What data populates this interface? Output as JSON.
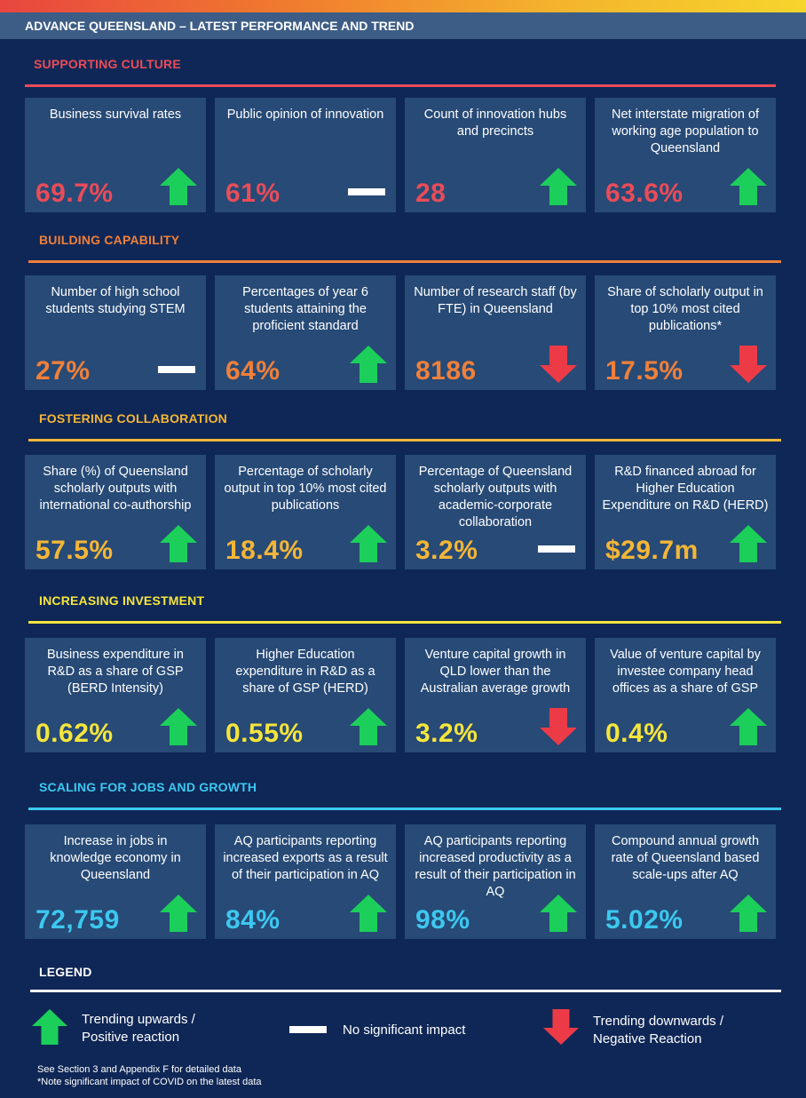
{
  "title": "ADVANCE QUEENSLAND – LATEST PERFORMANCE AND TREND",
  "colors": {
    "up": "#1ccf5a",
    "down": "#ec3b46",
    "none": "#ffffff"
  },
  "sections": [
    {
      "title": "SUPPORTING CULTURE",
      "color": "#ea4c58",
      "cards": [
        {
          "label": "Business survival rates",
          "value": "69.7%",
          "trend": "up"
        },
        {
          "label": "Public opinion of innovation",
          "value": "61%",
          "trend": "none"
        },
        {
          "label": "Count of innovation hubs and precincts",
          "value": "28",
          "trend": "up"
        },
        {
          "label": "Net interstate migration of working age population to Queensland",
          "value": "63.6%",
          "trend": "up"
        }
      ]
    },
    {
      "title": "BUILDING CAPABILITY",
      "color": "#f0803a",
      "cards": [
        {
          "label": "Number of high school students studying STEM",
          "value": "27%",
          "trend": "none"
        },
        {
          "label": "Percentages of year 6 students attaining the proficient standard",
          "value": "64%",
          "trend": "up"
        },
        {
          "label": "Number of research staff (by FTE) in Queensland",
          "value": "8186",
          "trend": "down"
        },
        {
          "label": "Share of scholarly output in top 10% most cited publications*",
          "value": "17.5%",
          "trend": "down"
        }
      ]
    },
    {
      "title": "FOSTERING COLLABORATION",
      "color": "#f5b636",
      "cards": [
        {
          "label": "Share (%) of Queensland scholarly outputs with international co-authorship",
          "value": "57.5%",
          "trend": "up"
        },
        {
          "label": "Percentage of scholarly output in top 10% most cited publications",
          "value": "18.4%",
          "trend": "up"
        },
        {
          "label": "Percentage of Queensland scholarly outputs with academic-corporate collaboration",
          "value": "3.2%",
          "trend": "none"
        },
        {
          "label": "R&D financed abroad for Higher Education Expenditure on R&D (HERD)",
          "value": "$29.7m",
          "trend": "up"
        }
      ]
    },
    {
      "title": "INCREASING INVESTMENT",
      "color": "#f5e53c",
      "cards": [
        {
          "label": "Business expenditure in R&D as a share of GSP (BERD Intensity)",
          "value": "0.62%",
          "trend": "up"
        },
        {
          "label": "Higher Education expenditure in R&D as a share of GSP  (HERD)",
          "value": "0.55%",
          "trend": "up"
        },
        {
          "label": "Venture capital growth in QLD lower than the Australian average growth",
          "value": "3.2%",
          "trend": "down"
        },
        {
          "label": "Value of venture capital by investee company head offices as a share of GSP",
          "value": "0.4%",
          "trend": "up"
        }
      ]
    },
    {
      "title": "SCALING FOR JOBS AND GROWTH",
      "color": "#3cc8ef",
      "cards": [
        {
          "label": "Increase in jobs in knowledge economy in Queensland",
          "value": "72,759",
          "trend": "up"
        },
        {
          "label": "AQ participants reporting increased exports as a result of their participation in AQ",
          "value": "84%",
          "trend": "up"
        },
        {
          "label": "AQ participants reporting increased productivity as a result of their participation in AQ",
          "value": "98%",
          "trend": "up"
        },
        {
          "label": "Compound annual growth rate of Queensland based scale-ups after AQ",
          "value": "5.02%",
          "trend": "up"
        }
      ]
    }
  ],
  "legend": {
    "title": "LEGEND",
    "up": {
      "line1": "Trending upwards /",
      "line2": "Positive reaction"
    },
    "none": {
      "label": "No significant impact"
    },
    "down": {
      "line1": "Trending downwards /",
      "line2": "Negative Reaction"
    }
  },
  "footnotes": [
    "See Section 3  and Appendix F for detailed data",
    "*Note significant impact of COVID on the latest data"
  ]
}
